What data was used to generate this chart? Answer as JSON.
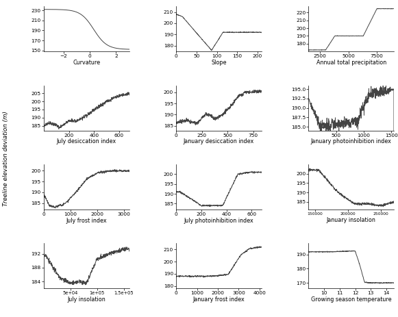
{
  "subplots": [
    {
      "xlabel": "Curvature",
      "xlim": [
        -3.5,
        3.0
      ],
      "xticks": [
        -2,
        0,
        2
      ],
      "ylim": [
        148,
        238
      ],
      "yticks": [
        150,
        170,
        190,
        210,
        230
      ]
    },
    {
      "xlabel": "Slope",
      "xlim": [
        0,
        210
      ],
      "xticks": [
        0,
        50,
        100,
        150,
        200
      ],
      "ylim": [
        175,
        215
      ],
      "yticks": [
        180,
        190,
        200,
        210
      ]
    },
    {
      "xlabel": "Annual total precipitation",
      "xlim": [
        1500,
        9000
      ],
      "xticks": [
        2500,
        5000,
        7500
      ],
      "ylim": [
        170,
        228
      ],
      "yticks": [
        180,
        190,
        200,
        210,
        220
      ]
    },
    {
      "xlabel": "July desiccation index",
      "xlim": [
        0,
        680
      ],
      "xticks": [
        200,
        400,
        600
      ],
      "ylim": [
        182,
        210
      ],
      "yticks": [
        185,
        190,
        195,
        200,
        205
      ]
    },
    {
      "xlabel": "January desiccation index",
      "xlim": [
        0,
        830
      ],
      "xticks": [
        0,
        250,
        500,
        750
      ],
      "ylim": [
        183,
        203
      ],
      "yticks": [
        185,
        190,
        195,
        200
      ]
    },
    {
      "xlabel": "January photoinhibition index",
      "xlim": [
        0,
        1550
      ],
      "xticks": [
        500,
        1000,
        1500
      ],
      "ylim": [
        184.0,
        196.0
      ],
      "yticks": [
        185.0,
        187.5,
        190.0,
        192.5,
        195.0
      ]
    },
    {
      "xlabel": "July frost index",
      "xlim": [
        0,
        3200
      ],
      "xticks": [
        0,
        1000,
        2000,
        3000
      ],
      "ylim": [
        182,
        203
      ],
      "yticks": [
        185,
        190,
        195,
        200
      ]
    },
    {
      "xlabel": "July photoinhibition index",
      "xlim": [
        0,
        680
      ],
      "xticks": [
        0,
        200,
        400,
        600
      ],
      "ylim": [
        182,
        205
      ],
      "yticks": [
        185,
        190,
        195,
        200
      ]
    },
    {
      "xlabel": "January insolation",
      "xlim": [
        140000,
        270000
      ],
      "xticks": [
        150000,
        200000,
        250000
      ],
      "ylim": [
        181,
        205
      ],
      "yticks": [
        185,
        190,
        195,
        200
      ]
    },
    {
      "xlabel": "July insolation",
      "xlim": [
        0,
        160000
      ],
      "xticks": [
        50000,
        100000,
        150000
      ],
      "ylim": [
        182,
        195
      ],
      "yticks": [
        184,
        188,
        192
      ]
    },
    {
      "xlabel": "January frost index",
      "xlim": [
        0,
        4100
      ],
      "xticks": [
        0,
        1000,
        2000,
        3000,
        4000
      ],
      "ylim": [
        178,
        215
      ],
      "yticks": [
        180,
        190,
        200,
        210
      ]
    },
    {
      "xlabel": "Growing season temperature",
      "xlim": [
        9,
        14.5
      ],
      "xticks": [
        10,
        11,
        12,
        13,
        14
      ],
      "ylim": [
        166,
        198
      ],
      "yticks": [
        170,
        180,
        190
      ]
    }
  ],
  "ylabel": "Treeline elevation deviation (m)",
  "line_color": "#444444",
  "line_width": 0.7,
  "bg_color": "#ffffff",
  "font_size": 5.8
}
